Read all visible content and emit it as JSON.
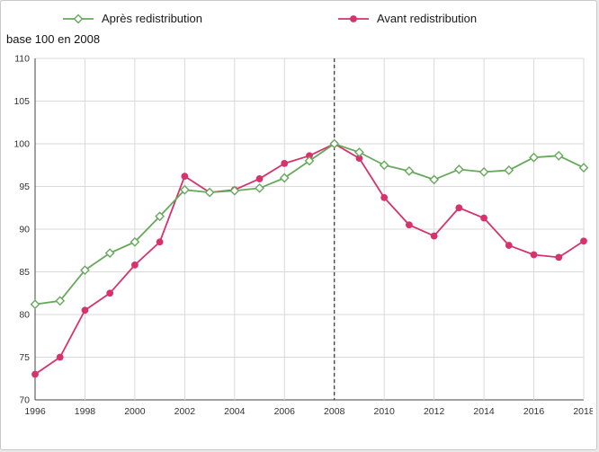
{
  "chart": {
    "note": "base 100 en 2008"
  },
  "chart_data": {
    "type": "line",
    "title": "",
    "note": "base 100 en 2008",
    "legend_position": "top",
    "grid": true,
    "vline_x": 2008,
    "ylim": [
      70,
      110
    ],
    "ytick_step": 5,
    "xticks": [
      1996,
      1998,
      2000,
      2002,
      2004,
      2006,
      2008,
      2010,
      2012,
      2014,
      2016,
      2018
    ],
    "x": [
      1996,
      1997,
      1998,
      1999,
      2000,
      2001,
      2002,
      2003,
      2004,
      2005,
      2006,
      2007,
      2008,
      2009,
      2010,
      2011,
      2012,
      2013,
      2014,
      2015,
      2016,
      2017,
      2018
    ],
    "series": [
      {
        "name": "Après redistribution",
        "color": "#67a95c",
        "marker": "diamond-open",
        "values": [
          81.2,
          81.6,
          85.2,
          87.2,
          88.5,
          91.5,
          94.6,
          94.3,
          94.5,
          94.8,
          96.0,
          98.0,
          100.0,
          99.0,
          97.5,
          96.8,
          95.8,
          97.0,
          96.7,
          96.9,
          98.4,
          98.6,
          97.2
        ]
      },
      {
        "name": "Avant redistribution",
        "color": "#d6336c",
        "marker": "circle",
        "values": [
          73.0,
          75.0,
          80.5,
          82.5,
          85.8,
          88.5,
          96.2,
          94.3,
          94.6,
          95.9,
          97.7,
          98.6,
          100.0,
          98.3,
          93.7,
          90.5,
          89.2,
          92.5,
          91.3,
          88.1,
          87.0,
          86.7,
          88.6
        ]
      }
    ]
  }
}
